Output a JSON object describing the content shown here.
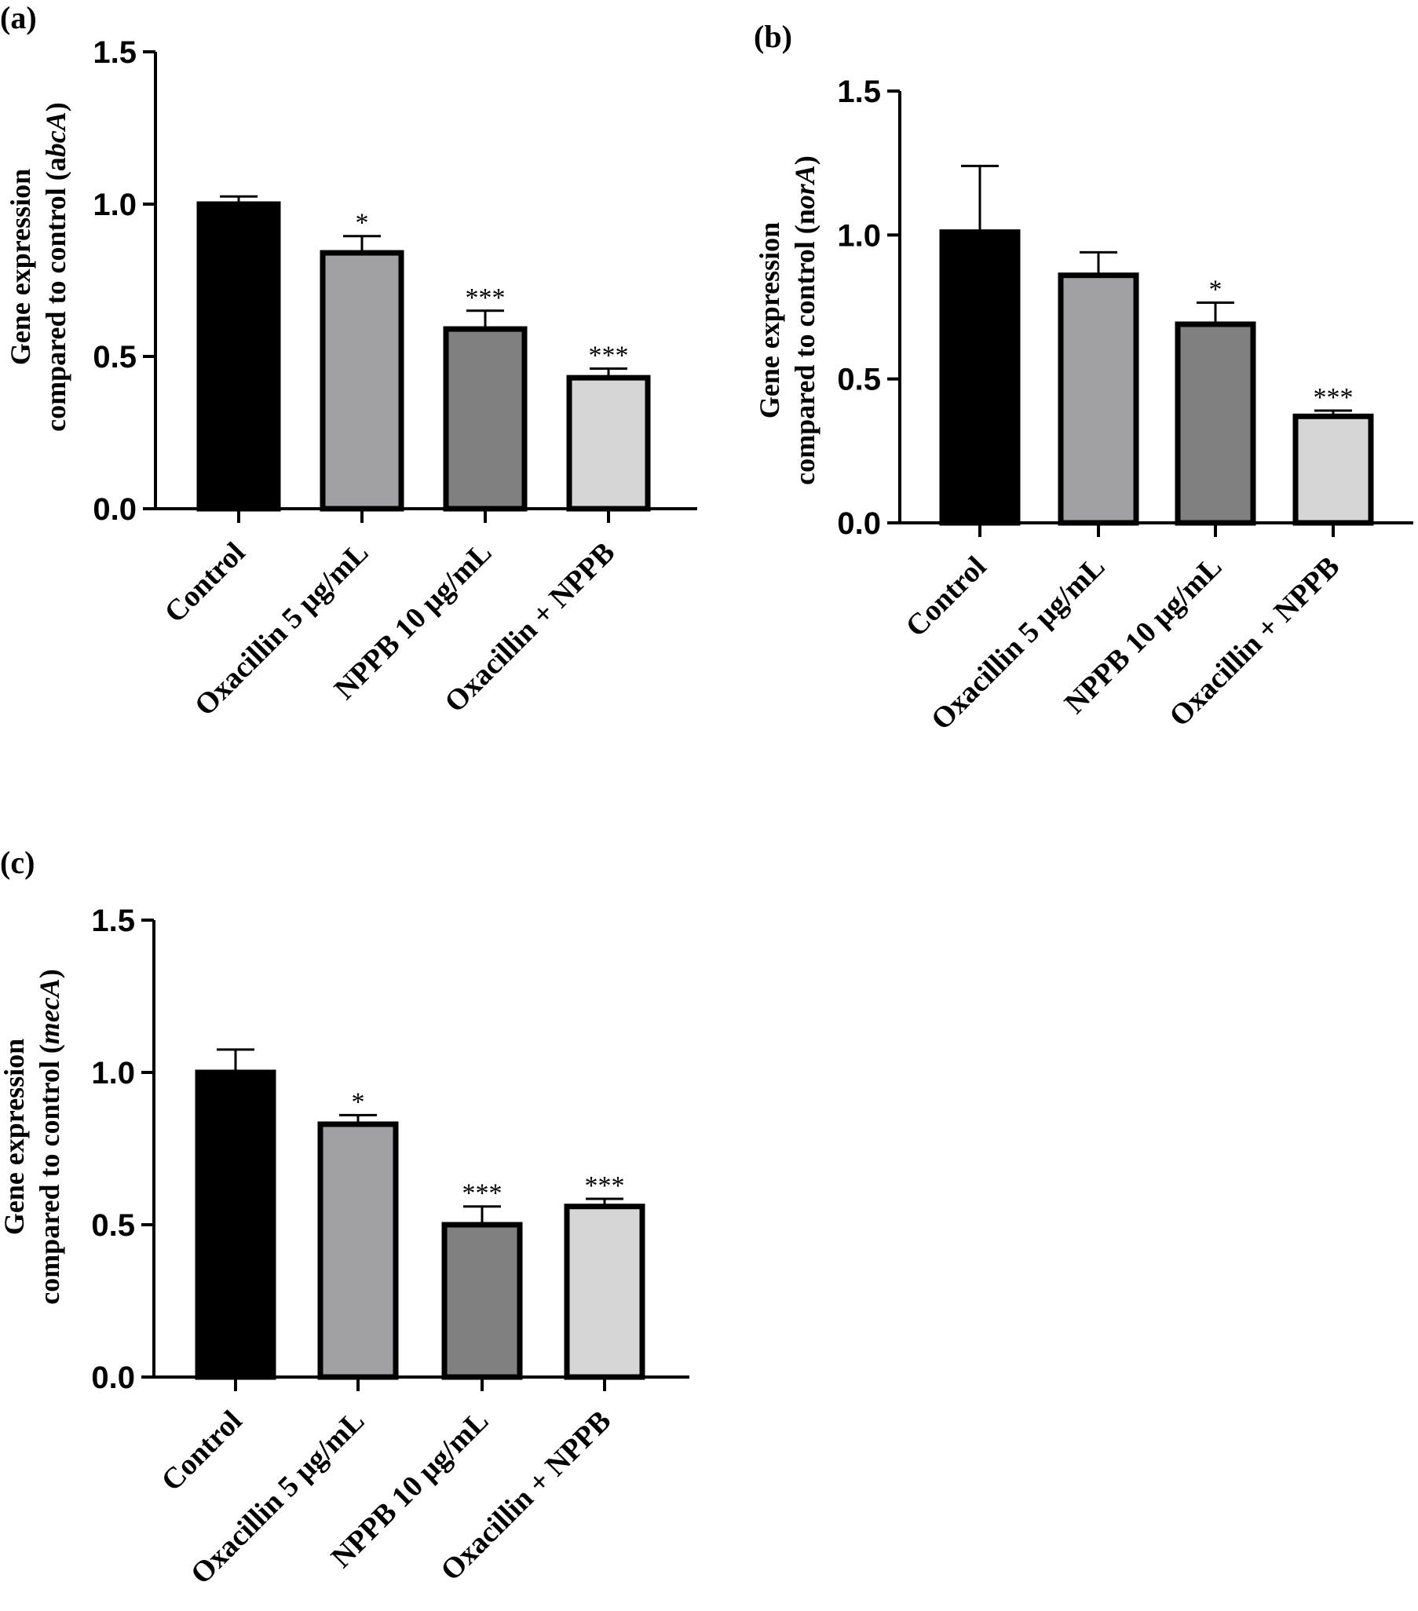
{
  "figure": {
    "panels": [
      {
        "label": "(a)"
      },
      {
        "label": "(b)"
      },
      {
        "label": "(c)"
      }
    ]
  },
  "chart_data": [
    {
      "type": "bar",
      "panel_label": "(a)",
      "title": "",
      "ylabel_line1": "Gene expression",
      "ylabel_prefix": "compared to control (a",
      "ylabel_gene_italic": "bcA",
      "ylabel_suffix": ")",
      "xlabel": "",
      "ylim": [
        0,
        1.5
      ],
      "yticks": [
        "0.0",
        "0.5",
        "1.0",
        "1.5"
      ],
      "yticks_values": [
        0,
        0.5,
        1.0,
        1.5
      ],
      "categories": [
        "Control",
        "Oxacillin 5 μg/mL",
        "NPPB 10 μg/mL",
        "Oxacillin + NPPB"
      ],
      "values": [
        1.0,
        0.84,
        0.59,
        0.43
      ],
      "errors": [
        0.025,
        0.055,
        0.06,
        0.03
      ],
      "significance": [
        "",
        "*",
        "***",
        "***"
      ],
      "colors": [
        "#000000",
        "#a1a1a5",
        "#808080",
        "#d6d6d6"
      ],
      "grid": false
    },
    {
      "type": "bar",
      "panel_label": "(b)",
      "title": "",
      "ylabel_line1": "Gene expression",
      "ylabel_prefix": "compared to control (n",
      "ylabel_gene_italic": "orA",
      "ylabel_suffix": ")",
      "xlabel": "",
      "ylim": [
        0,
        1.5
      ],
      "yticks": [
        "0.0",
        "0.5",
        "1.0",
        "1.5"
      ],
      "yticks_values": [
        0,
        0.5,
        1.0,
        1.5
      ],
      "categories": [
        "Control",
        "Oxacillin 5 μg/mL",
        "NPPB 10 μg/mL",
        "Oxacillin + NPPB"
      ],
      "values": [
        1.01,
        0.86,
        0.69,
        0.37
      ],
      "errors": [
        0.23,
        0.08,
        0.075,
        0.02
      ],
      "significance": [
        "",
        "",
        "*",
        "***"
      ],
      "colors": [
        "#000000",
        "#a1a1a5",
        "#808080",
        "#d6d6d6"
      ],
      "grid": false
    },
    {
      "type": "bar",
      "panel_label": "(c)",
      "title": "",
      "ylabel_line1": "Gene expression",
      "ylabel_prefix": "compared to control (",
      "ylabel_gene_italic": "mecA",
      "ylabel_suffix": ")",
      "xlabel": "",
      "ylim": [
        0,
        1.5
      ],
      "yticks": [
        "0.0",
        "0.5",
        "1.0",
        "1.5"
      ],
      "yticks_values": [
        0,
        0.5,
        1.0,
        1.5
      ],
      "categories": [
        "Control",
        "Oxacillin 5 μg/mL",
        "NPPB 10 μg/mL",
        "Oxacillin + NPPB"
      ],
      "values": [
        1.0,
        0.83,
        0.5,
        0.56
      ],
      "errors": [
        0.075,
        0.03,
        0.06,
        0.025
      ],
      "significance": [
        "",
        "*",
        "***",
        "***"
      ],
      "colors": [
        "#000000",
        "#a1a1a5",
        "#808080",
        "#d6d6d6"
      ],
      "grid": false
    }
  ]
}
